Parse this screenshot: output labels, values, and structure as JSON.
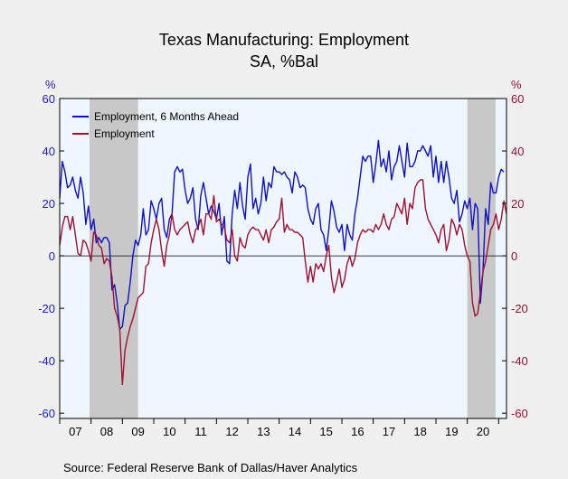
{
  "chart_data": {
    "type": "line",
    "title": "Texas Manufacturing: Employment",
    "subtitle": "SA, %Bal",
    "source": "Source:  Federal Reserve Bank of Dallas/Haver Analytics",
    "left_unit": "%",
    "right_unit": "%",
    "ylim": [
      -62,
      60
    ],
    "yticks": [
      -60,
      -40,
      -20,
      0,
      20,
      40,
      60
    ],
    "xlim": [
      2007.0,
      2021.25
    ],
    "x_tick_labels": [
      "07",
      "08",
      "09",
      "10",
      "11",
      "12",
      "13",
      "14",
      "15",
      "16",
      "17",
      "18",
      "19",
      "20"
    ],
    "legend_position": "top-left",
    "recessions": [
      [
        2007.95,
        2009.5
      ],
      [
        2020.0,
        2020.9
      ]
    ],
    "colors": {
      "series1": "#1010c8",
      "series2": "#a01030",
      "left_axis": "#2020c0",
      "right_axis": "#a01030",
      "recession": "#c8c8c8",
      "plot_bg": "#eef6ff"
    },
    "x_start": 2007.0,
    "x_step": 0.08333,
    "series": [
      {
        "name": "Employment, 6 Months Ahead",
        "values": [
          22,
          36,
          32,
          26,
          27,
          30,
          25,
          22,
          30,
          24,
          12,
          19,
          10,
          14,
          5,
          7,
          5,
          7,
          7,
          5,
          -13,
          -11,
          -18,
          -28,
          -27,
          -19,
          -18,
          -10,
          0,
          6,
          4,
          8,
          18,
          8,
          10,
          21,
          18,
          14,
          20,
          22,
          10,
          7,
          14,
          16,
          32,
          34,
          32,
          33,
          25,
          20,
          22,
          26,
          14,
          10,
          23,
          28,
          22,
          16,
          19,
          17,
          14,
          20,
          8,
          15,
          -2,
          -3,
          16,
          25,
          18,
          28,
          19,
          14,
          30,
          35,
          18,
          22,
          16,
          20,
          30,
          21,
          28,
          26,
          34,
          32,
          32,
          31,
          32,
          30,
          29,
          24,
          32,
          30,
          26,
          27,
          26,
          18,
          14,
          12,
          18,
          20,
          10,
          8,
          2,
          10,
          21,
          17,
          11,
          9,
          12,
          2,
          12,
          8,
          6,
          16,
          22,
          30,
          38,
          36,
          38,
          38,
          28,
          35,
          44,
          34,
          37,
          32,
          40,
          29,
          34,
          36,
          42,
          36,
          30,
          43,
          34,
          34,
          36,
          40,
          40,
          42,
          40,
          38,
          42,
          30,
          38,
          28,
          36,
          28,
          36,
          30,
          22,
          20,
          25,
          13,
          16,
          21,
          18,
          22,
          10,
          20,
          18,
          -18,
          -6,
          18,
          12,
          28,
          24,
          24,
          30,
          33,
          32
        ]
      },
      {
        "name": "Employment",
        "values": [
          4,
          11,
          15,
          15,
          10,
          15,
          8,
          1,
          0,
          6,
          5,
          2,
          -2,
          9,
          8,
          4,
          3,
          -3,
          -1,
          -2,
          -8,
          -20,
          -23,
          -28,
          -49,
          -36,
          -31,
          -27,
          -24,
          -20,
          -16,
          -15,
          -14,
          -4,
          -3,
          5,
          10,
          14,
          10,
          2,
          -4,
          4,
          8,
          16,
          10,
          8,
          10,
          11,
          12,
          13,
          8,
          5,
          10,
          11,
          14,
          8,
          16,
          16,
          14,
          23,
          13,
          14,
          12,
          11,
          6,
          5,
          10,
          0,
          -2,
          7,
          4,
          3,
          8,
          10,
          11,
          10,
          10,
          8,
          6,
          10,
          5,
          10,
          11,
          13,
          14,
          22,
          9,
          12,
          10,
          10,
          9,
          9,
          8,
          7,
          -2,
          -10,
          -4,
          -10,
          -3,
          -5,
          -3,
          -6,
          0,
          4,
          -8,
          -14,
          -10,
          -5,
          -12,
          -9,
          -3,
          0,
          -4,
          -1,
          5,
          8,
          10,
          9,
          10,
          10,
          9,
          12,
          10,
          12,
          16,
          12,
          10,
          14,
          15,
          20,
          18,
          16,
          22,
          12,
          20,
          18,
          26,
          28,
          29,
          29,
          18,
          14,
          12,
          10,
          8,
          5,
          10,
          12,
          2,
          6,
          14,
          12,
          8,
          12,
          10,
          4,
          0,
          -2,
          -18,
          -23,
          -22,
          -14,
          -6,
          -2,
          4,
          10,
          12,
          16,
          10,
          14,
          21,
          16
        ]
      }
    ]
  }
}
